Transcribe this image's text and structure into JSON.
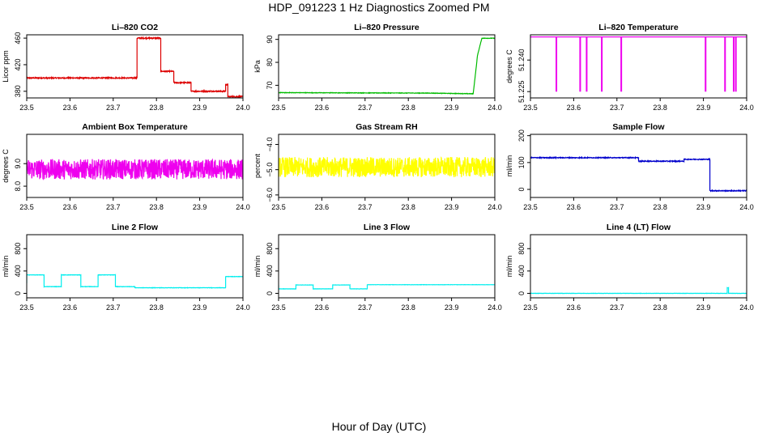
{
  "page": {
    "title": "HDP_091223  1 Hz Diagnostics Zoomed PM",
    "xlabel": "Hour of Day (UTC)"
  },
  "chart_data": [
    {
      "type": "line",
      "title": "Li–820 CO2",
      "ylabel": "Licor ppm",
      "xlim": [
        23.5,
        24.0
      ],
      "ylim": [
        370,
        465
      ],
      "xticks": [
        23.5,
        23.6,
        23.7,
        23.8,
        23.9,
        24.0
      ],
      "xtick_labels": [
        "23.5",
        "23.6",
        "23.7",
        "23.8",
        "23.9",
        "24.0"
      ],
      "yticks": [
        380,
        420,
        460
      ],
      "ytick_labels": [
        "380",
        "420",
        "460"
      ],
      "color": "#dd0000",
      "noise": 0.8,
      "series": [
        {
          "x": [
            23.5,
            23.755,
            23.755,
            23.81,
            23.81,
            23.84,
            23.84,
            23.88,
            23.88,
            23.96,
            23.96,
            23.965,
            23.965,
            24.0
          ],
          "y": [
            400,
            400,
            460,
            460,
            410,
            410,
            393,
            393,
            380,
            380,
            390,
            390,
            372,
            372
          ]
        }
      ]
    },
    {
      "type": "line",
      "title": "Li–820 Pressure",
      "ylabel": "kPa",
      "xlim": [
        23.5,
        24.0
      ],
      "ylim": [
        64.5,
        92
      ],
      "xticks": [
        23.5,
        23.6,
        23.7,
        23.8,
        23.9,
        24.0
      ],
      "xtick_labels": [
        "23.5",
        "23.6",
        "23.7",
        "23.8",
        "23.9",
        "24.0"
      ],
      "yticks": [
        70,
        80,
        90
      ],
      "ytick_labels": [
        "70",
        "80",
        "90"
      ],
      "color": "#00bb00",
      "noise": 0.1,
      "series": [
        {
          "x": [
            23.5,
            23.85,
            23.95,
            23.96,
            23.97,
            24.0
          ],
          "y": [
            66.8,
            66.6,
            66.3,
            83,
            90.5,
            90.5
          ]
        }
      ]
    },
    {
      "type": "line",
      "title": "Li–820 Temperature",
      "ylabel": "degrees C",
      "xlim": [
        23.5,
        24.0
      ],
      "ylim": [
        51.222,
        51.252
      ],
      "xticks": [
        23.5,
        23.6,
        23.7,
        23.8,
        23.9,
        24.0
      ],
      "xtick_labels": [
        "23.5",
        "23.6",
        "23.7",
        "23.8",
        "23.9",
        "24.0"
      ],
      "yticks": [
        51.225,
        51.24
      ],
      "ytick_labels": [
        "51.225",
        "51.240"
      ],
      "color": "#ee00ee",
      "noise": 0,
      "series": [
        {
          "x": [
            23.5,
            24.0
          ],
          "y": [
            51.251,
            51.251
          ]
        }
      ],
      "spikes": {
        "x": [
          23.56,
          23.615,
          23.63,
          23.665,
          23.71,
          23.905,
          23.95,
          23.97,
          23.975
        ],
        "y": 51.225
      }
    },
    {
      "type": "line",
      "title": "Ambient Box Temperature",
      "ylabel": "degrees C",
      "xlim": [
        23.5,
        24.0
      ],
      "ylim": [
        7.5,
        10.3
      ],
      "xticks": [
        23.5,
        23.6,
        23.7,
        23.8,
        23.9,
        24.0
      ],
      "xtick_labels": [
        "23.5",
        "23.6",
        "23.7",
        "23.8",
        "23.9",
        "24.0"
      ],
      "yticks": [
        8.0,
        9.0
      ],
      "ytick_labels": [
        "8.0",
        "9.0"
      ],
      "color": "#ee00ee",
      "noise": 0.45,
      "series": [
        {
          "x": [
            23.5,
            24.0
          ],
          "y": [
            8.75,
            8.75
          ]
        }
      ]
    },
    {
      "type": "line",
      "title": "Gas Stream RH",
      "ylabel": "percent",
      "xlim": [
        23.5,
        24.0
      ],
      "ylim": [
        -6.1,
        -3.6
      ],
      "xticks": [
        23.5,
        23.6,
        23.7,
        23.8,
        23.9,
        24.0
      ],
      "xtick_labels": [
        "23.5",
        "23.6",
        "23.7",
        "23.8",
        "23.9",
        "24.0"
      ],
      "yticks": [
        -6.0,
        -5.0,
        -4.0
      ],
      "ytick_labels": [
        "−6.0",
        "−5.0",
        "−4.0"
      ],
      "color": "#ffff00",
      "noise": 0.4,
      "series": [
        {
          "x": [
            23.5,
            24.0
          ],
          "y": [
            -4.9,
            -4.9
          ]
        }
      ]
    },
    {
      "type": "line",
      "title": "Sample Flow",
      "ylabel": "ml/min",
      "xlim": [
        23.5,
        24.0
      ],
      "ylim": [
        -30,
        205
      ],
      "xticks": [
        23.5,
        23.6,
        23.7,
        23.8,
        23.9,
        24.0
      ],
      "xtick_labels": [
        "23.5",
        "23.6",
        "23.7",
        "23.8",
        "23.9",
        "24.0"
      ],
      "yticks": [
        0,
        100,
        200
      ],
      "ytick_labels": [
        "0",
        "100",
        "200"
      ],
      "color": "#0000cc",
      "noise": 1.5,
      "series": [
        {
          "x": [
            23.5,
            23.75,
            23.75,
            23.855,
            23.855,
            23.915,
            23.915,
            24.0
          ],
          "y": [
            118,
            118,
            105,
            105,
            112,
            112,
            -5,
            -5
          ]
        }
      ]
    },
    {
      "type": "line",
      "title": "Line 2 Flow",
      "ylabel": "ml/min",
      "xlim": [
        23.5,
        24.0
      ],
      "ylim": [
        -80,
        1050
      ],
      "xticks": [
        23.5,
        23.6,
        23.7,
        23.8,
        23.9,
        24.0
      ],
      "xtick_labels": [
        "23.5",
        "23.6",
        "23.7",
        "23.8",
        "23.9",
        "24.0"
      ],
      "yticks": [
        0,
        400,
        800
      ],
      "ytick_labels": [
        "0",
        "400",
        "800"
      ],
      "color": "#00eeee",
      "noise": 3,
      "series": [
        {
          "x": [
            23.5,
            23.5,
            23.54,
            23.54,
            23.58,
            23.58,
            23.625,
            23.625,
            23.665,
            23.665,
            23.705,
            23.705,
            23.75,
            23.75,
            23.96,
            23.96,
            24.0
          ],
          "y": [
            180,
            330,
            330,
            120,
            120,
            330,
            330,
            120,
            120,
            330,
            330,
            120,
            120,
            100,
            100,
            300,
            300
          ]
        }
      ]
    },
    {
      "type": "line",
      "title": "Line 3 Flow",
      "ylabel": "ml/min",
      "xlim": [
        23.5,
        24.0
      ],
      "ylim": [
        -80,
        1050
      ],
      "xticks": [
        23.5,
        23.6,
        23.7,
        23.8,
        23.9,
        24.0
      ],
      "xtick_labels": [
        "23.5",
        "23.6",
        "23.7",
        "23.8",
        "23.9",
        "24.0"
      ],
      "yticks": [
        0,
        400,
        800
      ],
      "ytick_labels": [
        "0",
        "400",
        "800"
      ],
      "color": "#00eeee",
      "noise": 2,
      "series": [
        {
          "x": [
            23.5,
            23.5,
            23.54,
            23.54,
            23.58,
            23.58,
            23.625,
            23.625,
            23.665,
            23.665,
            23.705,
            23.705,
            24.0
          ],
          "y": [
            150,
            80,
            80,
            150,
            150,
            80,
            80,
            150,
            150,
            80,
            80,
            155,
            155
          ]
        }
      ]
    },
    {
      "type": "line",
      "title": "Line 4 (LT) Flow",
      "ylabel": "ml/min",
      "xlim": [
        23.5,
        24.0
      ],
      "ylim": [
        -80,
        1050
      ],
      "xticks": [
        23.5,
        23.6,
        23.7,
        23.8,
        23.9,
        24.0
      ],
      "xtick_labels": [
        "23.5",
        "23.6",
        "23.7",
        "23.8",
        "23.9",
        "24.0"
      ],
      "yticks": [
        0,
        400,
        800
      ],
      "ytick_labels": [
        "0",
        "400",
        "800"
      ],
      "color": "#00eeee",
      "noise": 2,
      "series": [
        {
          "x": [
            23.5,
            23.955,
            23.955,
            23.958,
            23.958,
            24.0
          ],
          "y": [
            0,
            0,
            100,
            100,
            0,
            0
          ]
        }
      ]
    }
  ]
}
